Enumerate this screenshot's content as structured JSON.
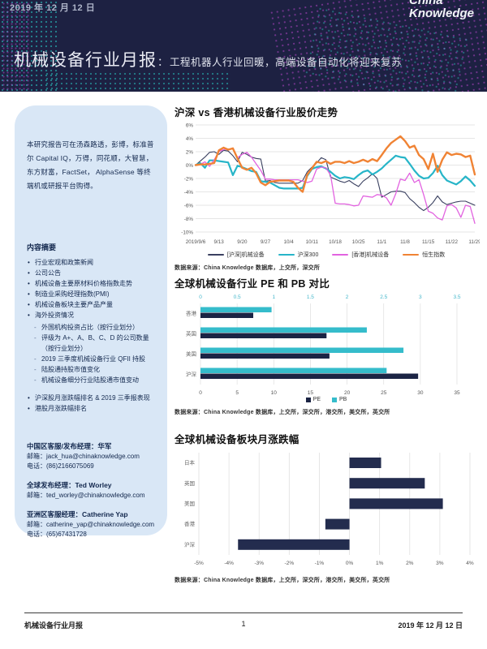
{
  "header": {
    "date": "2019 年 12 月 12 日",
    "logo_line1": "China",
    "logo_line2": "Knowledge",
    "title_main": "机械设备行业月报",
    "title_sep": "：",
    "title_sub": "工程机器人行业回暖，高端设备自动化将迎来复苏"
  },
  "sidebar": {
    "intro": "本研究报告可在汤森路透，彭博，标准普尔 Capital IQ，万得，同花顺，大智慧，东方财富，FactSet， AlphaSense 等终端机或研报平台购得。",
    "summary_title": "内容摘要",
    "items": [
      "行业宏观和政策新闻",
      "公司公告",
      "机械设备主要原材料价格指数走势",
      "制造业采购经理指数(PMI)",
      "机械设备板块主要产品产量",
      "海外投资情况"
    ],
    "subitems": [
      "外国机构投资占比（按行业划分）",
      "评级为 A+、A、B、C、D 的公司数量（按行业划分）",
      "2019 三季度机械设备行业 QFII 持股",
      "陆股通持股市值变化",
      "机械设备细分行业陆股通市值变动"
    ],
    "items2": [
      "沪深股月涨跌幅排名 & 2019 三季报表现",
      "港股月涨跌幅排名"
    ],
    "contacts": [
      {
        "role": "中国区客服/发布经理：华军",
        "email": "邮箱：jack_hua@chinaknowledge.com",
        "phone": "电话：(86)2166075069"
      },
      {
        "role": "全球发布经理：Ted Worley",
        "email": "邮箱：ted_worley@chinaknowledge.com"
      },
      {
        "role": "亚洲区客服经理：Catherine Yap",
        "email": "邮箱：catherine_yap@chinaknowledge.com",
        "phone": "电话：(65)67431728"
      }
    ]
  },
  "chart_data": [
    {
      "type": "line",
      "title": "沪深 vs 香港机械设备行业股价走势",
      "x_tick_labels": [
        "2019/9/6",
        "9/13",
        "9/20",
        "9/27",
        "10/4",
        "10/11",
        "10/18",
        "10/25",
        "11/1",
        "11/8",
        "11/15",
        "11/22",
        "11/29"
      ],
      "ylim": [
        -10,
        6
      ],
      "ytick_step": 2,
      "y_tick_labels": [
        "6%",
        "4%",
        "2%",
        "0%",
        "-2%",
        "-4%",
        "-6%",
        "-8%",
        "-10%"
      ],
      "grid": true,
      "legend_position": "bottom",
      "series": [
        {
          "name": "[沪深]机械设备",
          "color": "#3a4060",
          "values": [
            0,
            0.6,
            1.2,
            1.9,
            2.0,
            1.6,
            2.2,
            2.1,
            1.4,
            0.5,
            1.9,
            1.6,
            1.2,
            1.0,
            0.9,
            -2.4,
            -2.3,
            -2.6,
            -2.7,
            -2.7,
            -2.7,
            -2.7,
            -2.7,
            -2.3,
            -1.0,
            -0.3,
            0.3,
            1.1,
            0.8,
            -1.8,
            -2.1,
            -2.4,
            -2.6,
            -2.3,
            -2.8,
            -3.2,
            -2.4,
            -1.9,
            -1.3,
            -2.0,
            -4.8,
            -4.4,
            -4.0,
            -3.9,
            -3.9,
            -4.1,
            -5.0,
            -5.6,
            -6.3,
            -6.8,
            -6.3,
            -5.6,
            -4.6,
            -5.5,
            -5.9,
            -5.7,
            -5.5,
            -5.4,
            -5.4,
            -5.7,
            -6.0
          ]
        },
        {
          "name": "沪深300",
          "color": "#27b5c8",
          "values": [
            0,
            0.3,
            -0.4,
            0.7,
            0.7,
            0.6,
            0.5,
            0.4,
            -1.5,
            -0.1,
            -0.3,
            -0.6,
            -0.9,
            -1.0,
            -2.4,
            -2.5,
            -2.6,
            -3.0,
            -3.4,
            -3.5,
            -3.5,
            -3.5,
            -3.5,
            -3.4,
            -1.6,
            -0.6,
            -0.3,
            -0.2,
            -0.5,
            -1.0,
            -1.6,
            -2.0,
            -1.8,
            -1.9,
            -2.1,
            -1.5,
            -1.0,
            -0.8,
            -1.4,
            -1.0,
            -0.5,
            0.2,
            0.8,
            1.4,
            1.2,
            1.1,
            0.2,
            -0.8,
            -1.6,
            -2.0,
            -1.9,
            -1.2,
            -0.1,
            -1.5,
            -2.3,
            -2.6,
            -2.9,
            -2.4,
            -1.7,
            -2.3,
            -3.1
          ]
        },
        {
          "name": "[香港]机械设备",
          "color": "#e263e0",
          "values": [
            0,
            0.1,
            0.5,
            -0.2,
            0.8,
            2.0,
            2.3,
            2.4,
            2.4,
            1.1,
            1.6,
            1.9,
            1.2,
            0.2,
            -0.8,
            -2.1,
            -2.1,
            -2.2,
            -2.2,
            -2.2,
            -2.2,
            -2.2,
            -2.2,
            -2.4,
            -2.6,
            -2.4,
            -0.6,
            -0.3,
            -0.4,
            -1.5,
            -5.7,
            -5.8,
            -5.8,
            -5.9,
            -6.1,
            -6.0,
            -4.6,
            -4.7,
            -4.8,
            -4.4,
            -4.5,
            -4.9,
            -6.0,
            -4.3,
            -2.1,
            -2.3,
            -1.2,
            -2.6,
            -2.2,
            -4.4,
            -6.9,
            -7.2,
            -7.9,
            -8.2,
            -6.1,
            -5.9,
            -6.4,
            -7.8,
            -6.0,
            -6.2,
            -8.7
          ]
        },
        {
          "name": "恒生指数",
          "color": "#f08334",
          "values": [
            0,
            0.1,
            0.1,
            0.2,
            0.3,
            2.2,
            2.6,
            2.3,
            2.5,
            1.0,
            -0.4,
            -0.7,
            -0.4,
            -1.2,
            -2.6,
            -3.0,
            -2.5,
            -2.4,
            -2.3,
            -2.3,
            -2.3,
            -2.5,
            -3.4,
            -4.0,
            -1.4,
            -0.5,
            0.5,
            0.3,
            0.6,
            0.2,
            0.5,
            0.5,
            0.3,
            0.6,
            0.3,
            0.5,
            0.8,
            0.5,
            0.9,
            0.6,
            1.5,
            2.5,
            3.3,
            3.8,
            4.3,
            3.6,
            2.6,
            2.9,
            1.5,
            0.9,
            -0.6,
            1.7,
            -1.0,
            0.8,
            1.9,
            1.5,
            1.7,
            1.6,
            1.2,
            1.4,
            -1.4
          ]
        }
      ],
      "source": "数据来源：China Knowledge 数据库，上交所，深交所"
    },
    {
      "type": "bar",
      "orientation": "horizontal",
      "title": "全球机械设备行业 PE 和 PB 对比",
      "categories": [
        "香港",
        "英国",
        "美国",
        "沪深"
      ],
      "series": [
        {
          "name": "PE",
          "color": "#1b2444",
          "axis": "bottom",
          "values": [
            7.2,
            17.2,
            17.6,
            29.7
          ]
        },
        {
          "name": "PB",
          "color": "#35bccb",
          "axis": "top",
          "values": [
            0.97,
            2.27,
            2.77,
            2.54
          ]
        }
      ],
      "bottom_axis": {
        "min": 0,
        "max": 35,
        "step": 5
      },
      "top_axis": {
        "min": 0,
        "max": 3.5,
        "step": 0.5,
        "color": "#45b7cb"
      },
      "grid": true,
      "legend_position": "bottom",
      "source": "数据来源：China Knowledge 数据库，上交所，深交所，港交所，美交所，英交所"
    },
    {
      "type": "bar",
      "orientation": "horizontal",
      "title": "全球机械设备板块月涨跌幅",
      "categories": [
        "日本",
        "英国",
        "美国",
        "香港",
        "沪深"
      ],
      "values": [
        1.05,
        2.5,
        3.1,
        -0.8,
        -3.7
      ],
      "color": "#232c4e",
      "axis": {
        "min": -5,
        "max": 4,
        "step": 1,
        "suffix": "%"
      },
      "grid": true,
      "source": "数据来源：China Knowledge 数据库，上交所，深交所，港交所，美交所，英交所"
    }
  ],
  "footer": {
    "left": "机械设备行业月报",
    "page": "1",
    "right": "2019 年 12 月 12 日"
  }
}
